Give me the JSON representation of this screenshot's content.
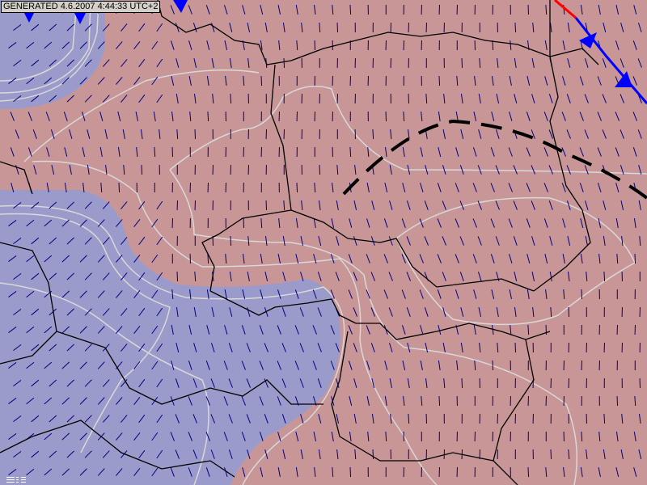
{
  "stamp": {
    "text": "GENERATED 4.6.2007 4:44:33 UTC+2"
  },
  "colors": {
    "warm_fill": "#c89696",
    "cold_fill": "#9b9bcb",
    "contour": "#d8d8d8",
    "wind_arrow": "#000080",
    "border": "#000000",
    "cold_front": "#0000ff",
    "warm_front": "#ff0000",
    "trough": "#000000"
  },
  "icons": {
    "wind": "wind-arrow-icon",
    "cold_front": "cold-front-triangle-icon",
    "legend": "legend-bars-icon"
  }
}
